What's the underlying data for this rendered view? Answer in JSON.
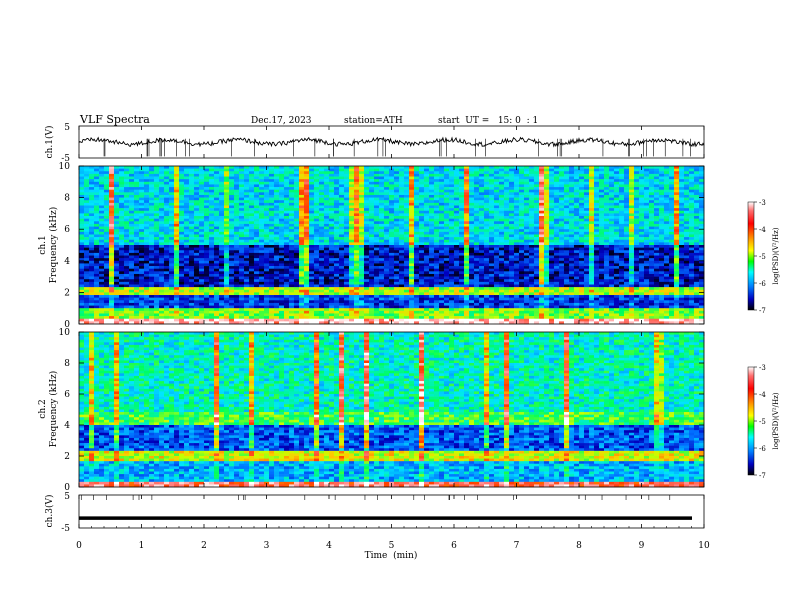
{
  "header": {
    "title": "VLF  Spectra",
    "date": "Dec.17, 2023",
    "station": "station=ATH",
    "start_ut": "start  UT =   15: 0  : 1"
  },
  "colors": {
    "background": "#ffffff",
    "axis": "#000000",
    "colormap": [
      "#ffffff",
      "#ff6a6a",
      "#ff0000",
      "#ff8c00",
      "#ffff00",
      "#7cfc00",
      "#00ff7f",
      "#00ffff",
      "#00bfff",
      "#0060ff",
      "#0000cd",
      "#000000"
    ]
  },
  "chart_data": [
    {
      "type": "line",
      "name": "ch1-waveform",
      "ylabel": "ch.1(V)",
      "xlim": [
        0,
        10
      ],
      "ylim": [
        -5,
        5
      ],
      "yticks": [
        "5",
        "-5"
      ],
      "baseline": 0,
      "description_values": "noise waveform fluctuating near 0 V with spikes"
    },
    {
      "type": "heatmap",
      "name": "ch1-spectrogram",
      "ylabel": "ch.1\nFrequency  (kHz)",
      "ylabel_lines": [
        "ch.1",
        "Frequency  (kHz)"
      ],
      "xlim": [
        0,
        10
      ],
      "ylim": [
        0,
        10
      ],
      "yticks": [
        "0",
        "2",
        "4",
        "6",
        "8",
        "10"
      ],
      "colorbar": {
        "label": "log(PSD)(V²/Hz)",
        "ticks": [
          "-3",
          "-4",
          "-5",
          "-6",
          "-7"
        ],
        "range": [
          -7,
          -3
        ]
      },
      "bands": [
        {
          "freq_khz": [
            0,
            0.4
          ],
          "level": -3.2
        },
        {
          "freq_khz": [
            0.4,
            1.0
          ],
          "level": -4.8
        },
        {
          "freq_khz": [
            1.0,
            1.8
          ],
          "level": -6.3
        },
        {
          "freq_khz": [
            1.8,
            2.4
          ],
          "level": -4.6
        },
        {
          "freq_khz": [
            2.4,
            5.0
          ],
          "level": -6.5
        },
        {
          "freq_khz": [
            5.0,
            10.0
          ],
          "level": -5.6
        }
      ]
    },
    {
      "type": "heatmap",
      "name": "ch2-spectrogram",
      "ylabel_lines": [
        "ch.2",
        "Frequency  (kHz)"
      ],
      "xlim": [
        0,
        10
      ],
      "ylim": [
        0,
        10
      ],
      "yticks": [
        "0",
        "2",
        "4",
        "6",
        "8",
        "10"
      ],
      "colorbar": {
        "label": "log(PSD)(V²/Hz)",
        "ticks": [
          "-3",
          "-4",
          "-5",
          "-6",
          "-7"
        ],
        "range": [
          -7,
          -3
        ]
      },
      "bands": [
        {
          "freq_khz": [
            0,
            0.4
          ],
          "level": -3.5
        },
        {
          "freq_khz": [
            0.4,
            1.6
          ],
          "level": -5.8
        },
        {
          "freq_khz": [
            1.6,
            2.3
          ],
          "level": -4.5
        },
        {
          "freq_khz": [
            2.3,
            4.0
          ],
          "level": -6.2
        },
        {
          "freq_khz": [
            4.0,
            4.8
          ],
          "level": -5.0
        },
        {
          "freq_khz": [
            4.8,
            10.0
          ],
          "level": -5.4
        }
      ]
    },
    {
      "type": "line",
      "name": "ch3-waveform",
      "ylabel": "ch.3(V)",
      "xlim": [
        0,
        10
      ],
      "ylim": [
        -5,
        5
      ],
      "yticks": [
        "5",
        "-5"
      ],
      "baseline": -2
    }
  ],
  "xaxis": {
    "label": "Time  (min)",
    "ticks": [
      "0",
      "1",
      "2",
      "3",
      "4",
      "5",
      "6",
      "7",
      "8",
      "9",
      "10"
    ],
    "range": [
      0,
      10
    ]
  }
}
